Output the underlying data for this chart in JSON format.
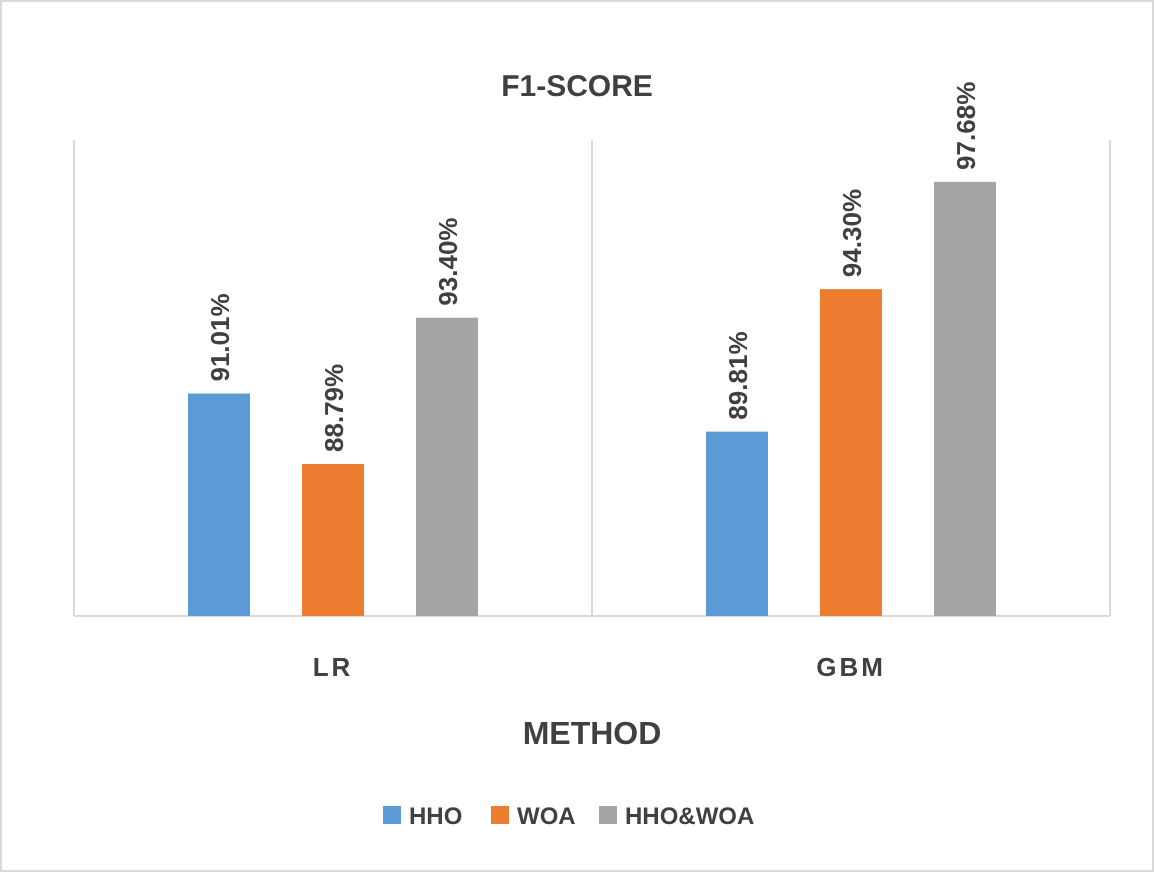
{
  "chart_data": {
    "type": "bar",
    "title": "F1-SCORE",
    "xlabel": "METHOD",
    "categories": [
      "LR",
      "GBM"
    ],
    "series": [
      {
        "name": "HHO",
        "color": "#5b9bd5",
        "values": [
          91.01,
          89.81
        ],
        "value_labels": [
          "91.01%",
          "89.81%"
        ]
      },
      {
        "name": "WOA",
        "color": "#ed7d31",
        "values": [
          88.79,
          94.3
        ],
        "value_labels": [
          "88.79%",
          "94.30%"
        ]
      },
      {
        "name": "HHO&WOA",
        "color": "#a5a5a5",
        "values": [
          93.4,
          97.68
        ],
        "value_labels": [
          "93.40%",
          "97.68%"
        ]
      }
    ],
    "ylim": [
      84,
      99
    ],
    "tick_labels": "x",
    "grid": "x",
    "legend": "bottom"
  }
}
